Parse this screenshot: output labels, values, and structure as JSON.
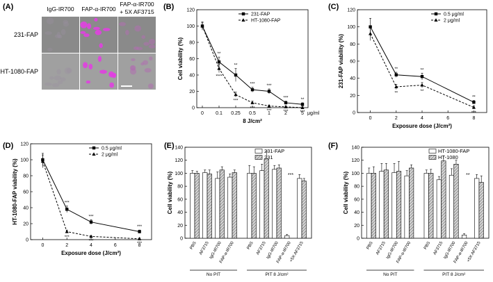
{
  "chart_data": [
    {
      "panel": "(A)",
      "type": "image-grid",
      "columns": [
        "IgG-IR700",
        "FAP-α-IR700",
        "FAP-α-IR700\n+ 5X AF3715"
      ],
      "rows": [
        "231-FAP",
        "HT-1080-FAP"
      ]
    },
    {
      "panel": "(B)",
      "type": "line",
      "categories": [
        "0",
        "0.1",
        "0.25",
        "0.5",
        "1",
        "2",
        "5"
      ],
      "unit_label": "μg/ml",
      "xlabel": "8 J/cm²",
      "ylabel": "Cell viability (%)",
      "ylim": [
        0,
        120
      ],
      "yticks": [
        0,
        20,
        40,
        60,
        80,
        100,
        120
      ],
      "legend": "top-right",
      "series": [
        {
          "name": "231-FAP",
          "style": "solid",
          "marker": "square",
          "values": [
            100,
            56,
            40,
            22,
            20,
            6,
            4
          ],
          "errors": [
            5,
            6,
            8,
            3,
            3,
            2,
            2
          ],
          "sig": [
            "",
            "**",
            "**",
            "***",
            "***",
            "***",
            "**"
          ]
        },
        {
          "name": "HT-1080-FAP",
          "style": "dashed",
          "marker": "triangle",
          "values": [
            100,
            48,
            16,
            6,
            2,
            1,
            0
          ],
          "errors": [
            4,
            5,
            3,
            2,
            1,
            1,
            1
          ],
          "sig": [
            "",
            "****",
            "***",
            "***",
            "***",
            "***",
            "***"
          ]
        }
      ]
    },
    {
      "panel": "(C)",
      "type": "line",
      "x": [
        0,
        2,
        4,
        8
      ],
      "xlabel": "Exposure dose (J/cm²)",
      "ylabel": "231-FAP viability (%)",
      "xlim": [
        -1,
        9
      ],
      "ylim": [
        0,
        120
      ],
      "yticks": [
        0,
        20,
        40,
        60,
        80,
        100,
        120
      ],
      "xticks": [
        0,
        2,
        4,
        6,
        8
      ],
      "legend": "top-right",
      "series": [
        {
          "name": "0.5 μg/ml",
          "style": "solid",
          "marker": "square",
          "values": [
            100,
            44,
            42,
            12
          ],
          "errors": [
            10,
            3,
            4,
            2
          ],
          "sig": [
            "",
            "**",
            "**",
            "**"
          ]
        },
        {
          "name": "2 μg/ml",
          "style": "dashed",
          "marker": "triangle",
          "values": [
            92,
            30,
            32,
            6
          ],
          "errors": [
            8,
            3,
            3,
            2
          ],
          "sig": [
            "",
            "**",
            "**",
            "***"
          ]
        }
      ]
    },
    {
      "panel": "(D)",
      "type": "line",
      "x": [
        0,
        2,
        4,
        8
      ],
      "xlabel": "Exposure dose (J/cm²)",
      "ylabel": "HT-1080-FAP viability (%)",
      "xlim": [
        -1,
        9
      ],
      "ylim": [
        0,
        120
      ],
      "yticks": [
        0,
        20,
        40,
        60,
        80,
        100,
        120
      ],
      "xticks": [
        0,
        2,
        4,
        6,
        8
      ],
      "legend": "top-right",
      "series": [
        {
          "name": "0.5 μg/ml",
          "style": "solid",
          "marker": "square",
          "values": [
            100,
            38,
            22,
            10
          ],
          "errors": [
            8,
            4,
            3,
            2
          ],
          "sig": [
            "",
            "***",
            "***",
            "***"
          ]
        },
        {
          "name": "2 μg/ml",
          "style": "dashed",
          "marker": "triangle",
          "values": [
            98,
            10,
            4,
            1
          ],
          "errors": [
            8,
            2,
            1,
            1
          ],
          "sig": [
            "",
            "***",
            "***",
            "***"
          ]
        }
      ]
    },
    {
      "panel": "(E)",
      "type": "bar",
      "categories": [
        "PBS",
        "AF3715",
        "IgG-IR700",
        "FAP-α-IR700",
        "PBS",
        "AF3715",
        "IgG-IR700",
        "FAP-α-IR700",
        "+5X AF3715"
      ],
      "groups": [
        {
          "label": "No PIT",
          "from": 0,
          "to": 3
        },
        {
          "label": "PIT 8 J/cm²",
          "from": 4,
          "to": 8
        }
      ],
      "ylabel": "Cell viability (%)",
      "ylim": [
        0,
        140
      ],
      "yticks": [
        0,
        20,
        40,
        60,
        80,
        100,
        120,
        140
      ],
      "legend": "top-right",
      "series": [
        {
          "name": "231-FAP",
          "fill": "white",
          "values": [
            100,
            101,
            92,
            94,
            100,
            104,
            106,
            4,
            92
          ],
          "errors": [
            4,
            4,
            10,
            5,
            12,
            10,
            6,
            2,
            6
          ]
        },
        {
          "name": "231",
          "fill": "hatched",
          "values": [
            100,
            99,
            105,
            101,
            100,
            122,
            108,
            null,
            88
          ],
          "errors": [
            3,
            6,
            5,
            4,
            10,
            12,
            5,
            null,
            4
          ]
        }
      ],
      "annotations": [
        {
          "text": "***",
          "category": 7
        }
      ]
    },
    {
      "panel": "(F)",
      "type": "bar",
      "categories": [
        "PBS",
        "AF3715",
        "IgG-IR700",
        "FAP-α-IR700",
        "PBS",
        "AF3715",
        "IgG-IR700",
        "FAP-α-IR700",
        "+5X AF3715"
      ],
      "groups": [
        {
          "label": "No PIT",
          "from": 0,
          "to": 3
        },
        {
          "label": "PIT 8 J/cm²",
          "from": 4,
          "to": 8
        }
      ],
      "ylabel": "Cell viability (%)",
      "ylim": [
        0,
        140
      ],
      "yticks": [
        0,
        20,
        40,
        60,
        80,
        100,
        120,
        140
      ],
      "legend": "top-right",
      "series": [
        {
          "name": "HT-1080-FAP",
          "fill": "white",
          "values": [
            100,
            103,
            101,
            96,
            100,
            90,
            97,
            5,
            92
          ],
          "errors": [
            8,
            12,
            14,
            8,
            5,
            5,
            10,
            2,
            6
          ]
        },
        {
          "name": "HT-1080",
          "fill": "hatched",
          "values": [
            100,
            105,
            103,
            108,
            100,
            119,
            114,
            null,
            86
          ],
          "errors": [
            10,
            10,
            15,
            5,
            6,
            8,
            6,
            null,
            10
          ]
        }
      ],
      "annotations": [
        {
          "text": "**",
          "category": 7
        }
      ]
    }
  ]
}
